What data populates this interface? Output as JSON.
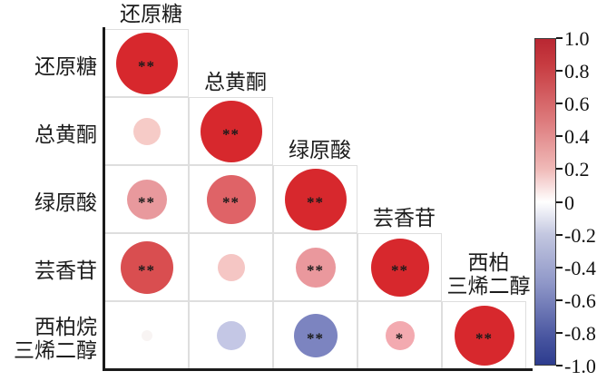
{
  "chart": {
    "title": "",
    "row_labels_lines": [
      [
        "还原糖"
      ],
      [
        "总黄酮"
      ],
      [
        "绿原酸"
      ],
      [
        "芸香苷"
      ],
      [
        "西柏烷",
        "三烯二醇"
      ]
    ],
    "column_headers_lines": [
      [
        "还原糖"
      ],
      [
        "总黄酮"
      ],
      [
        "绿原酸"
      ],
      [
        "芸香苷"
      ],
      [
        "西柏",
        "三烯二醇"
      ]
    ]
  },
  "chart_data": {
    "type": "heatmap",
    "subtype": "lower-triangle correlation bubble matrix (corrplot style)",
    "variables": [
      "还原糖",
      "总黄酮",
      "绿原酸",
      "芸香苷",
      "西柏烷三烯二醇"
    ],
    "legend_position": "right colorbar",
    "value_range": [
      -1.0,
      1.0
    ],
    "cells": [
      {
        "row": 1,
        "col": 1,
        "row_var": "还原糖",
        "col_var": "还原糖",
        "value_estimate": 1.0,
        "stars": "**",
        "color": "#d7282d",
        "radius_px": 34
      },
      {
        "row": 2,
        "col": 1,
        "row_var": "总黄酮",
        "col_var": "还原糖",
        "value_estimate": 0.2,
        "stars": "",
        "color": "#f6cbc7",
        "radius_px": 15
      },
      {
        "row": 2,
        "col": 2,
        "row_var": "总黄酮",
        "col_var": "总黄酮",
        "value_estimate": 1.0,
        "stars": "**",
        "color": "#d7282d",
        "radius_px": 34
      },
      {
        "row": 3,
        "col": 1,
        "row_var": "绿原酸",
        "col_var": "还原糖",
        "value_estimate": 0.45,
        "stars": "**",
        "color": "#e8999d",
        "radius_px": 22
      },
      {
        "row": 3,
        "col": 2,
        "row_var": "绿原酸",
        "col_var": "总黄酮",
        "value_estimate": 0.65,
        "stars": "**",
        "color": "#df6367",
        "radius_px": 27
      },
      {
        "row": 3,
        "col": 3,
        "row_var": "绿原酸",
        "col_var": "绿原酸",
        "value_estimate": 1.0,
        "stars": "**",
        "color": "#d7282d",
        "radius_px": 34
      },
      {
        "row": 4,
        "col": 1,
        "row_var": "芸香苷",
        "col_var": "还原糖",
        "value_estimate": 0.75,
        "stars": "**",
        "color": "#d94e50",
        "radius_px": 29
      },
      {
        "row": 4,
        "col": 2,
        "row_var": "芸香苷",
        "col_var": "总黄酮",
        "value_estimate": 0.2,
        "stars": "",
        "color": "#f5c6c4",
        "radius_px": 15
      },
      {
        "row": 4,
        "col": 3,
        "row_var": "芸香苷",
        "col_var": "绿原酸",
        "value_estimate": 0.45,
        "stars": "**",
        "color": "#ea989d",
        "radius_px": 22
      },
      {
        "row": 4,
        "col": 4,
        "row_var": "芸香苷",
        "col_var": "芸香苷",
        "value_estimate": 1.0,
        "stars": "**",
        "color": "#d7282d",
        "radius_px": 32
      },
      {
        "row": 5,
        "col": 1,
        "row_var": "西柏烷三烯二醇",
        "col_var": "还原糖",
        "value_estimate": 0.02,
        "stars": "",
        "color": "#f8f4f3",
        "radius_px": 6
      },
      {
        "row": 5,
        "col": 2,
        "row_var": "西柏烷三烯二醇",
        "col_var": "总黄酮",
        "value_estimate": -0.25,
        "stars": "",
        "color": "#c4c7e5",
        "radius_px": 16
      },
      {
        "row": 5,
        "col": 3,
        "row_var": "西柏烷三烯二醇",
        "col_var": "绿原酸",
        "value_estimate": -0.5,
        "stars": "**",
        "color": "#7c84c0",
        "radius_px": 24
      },
      {
        "row": 5,
        "col": 4,
        "row_var": "西柏烷三烯二醇",
        "col_var": "芸香苷",
        "value_estimate": 0.3,
        "stars": "*",
        "color": "#f3aab0",
        "radius_px": 16
      },
      {
        "row": 5,
        "col": 5,
        "row_var": "西柏烷三烯二醇",
        "col_var": "西柏烷三烯二醇",
        "value_estimate": 1.0,
        "stars": "**",
        "color": "#d7282d",
        "radius_px": 33
      }
    ],
    "colorbar": {
      "min": -1.0,
      "max": 1.0,
      "tick_labels": [
        "1.0",
        "0.8",
        "0.6",
        "0.4",
        "0.2",
        "0",
        "-0.2",
        "-0.4",
        "-0.6",
        "-0.8",
        "-1.0"
      ],
      "gradient_stops": [
        {
          "pos": 0.0,
          "color": "#b92732"
        },
        {
          "pos": 0.08,
          "color": "#c73c41"
        },
        {
          "pos": 0.25,
          "color": "#dd7a7c"
        },
        {
          "pos": 0.4,
          "color": "#f0bab8"
        },
        {
          "pos": 0.5,
          "color": "#ffffff"
        },
        {
          "pos": 0.6,
          "color": "#c3c7e0"
        },
        {
          "pos": 0.75,
          "color": "#8f97c8"
        },
        {
          "pos": 0.92,
          "color": "#47549f"
        },
        {
          "pos": 1.0,
          "color": "#2d3c8e"
        }
      ]
    }
  }
}
